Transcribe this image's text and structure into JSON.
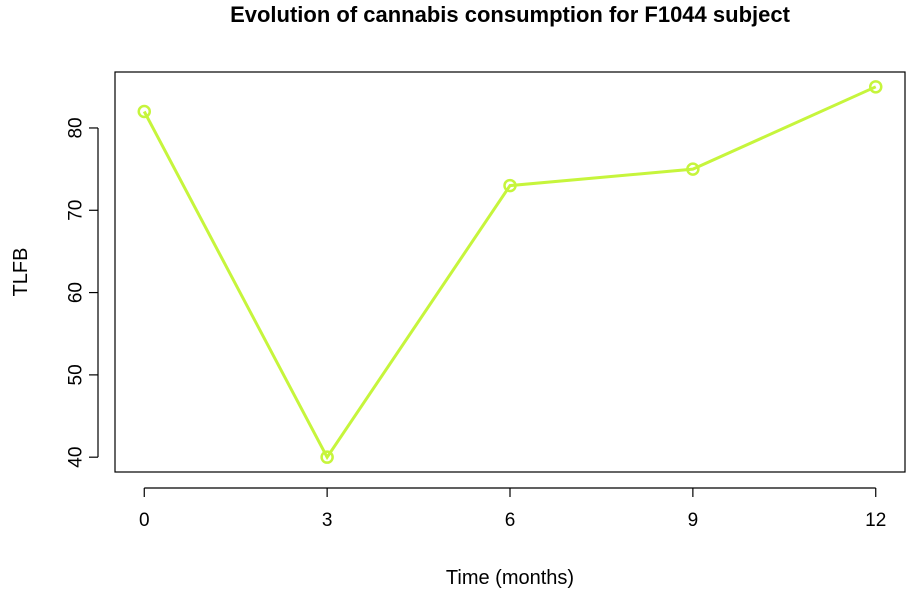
{
  "chart_data": {
    "type": "line",
    "title": "Evolution of cannabis consumption for F1044 subject",
    "xlabel": "Time (months)",
    "ylabel": "TLFB",
    "x": [
      0,
      3,
      6,
      9,
      12
    ],
    "series": [
      {
        "values": [
          82,
          40,
          73,
          75,
          85
        ],
        "color": "#c6f53c"
      }
    ],
    "xticks": [
      0,
      3,
      6,
      9,
      12
    ],
    "yticks": [
      40,
      50,
      60,
      70,
      80
    ],
    "xlim": [
      -0.48,
      12.48
    ],
    "ylim": [
      38.2,
      86.8
    ],
    "grid": false,
    "legend": "none"
  }
}
